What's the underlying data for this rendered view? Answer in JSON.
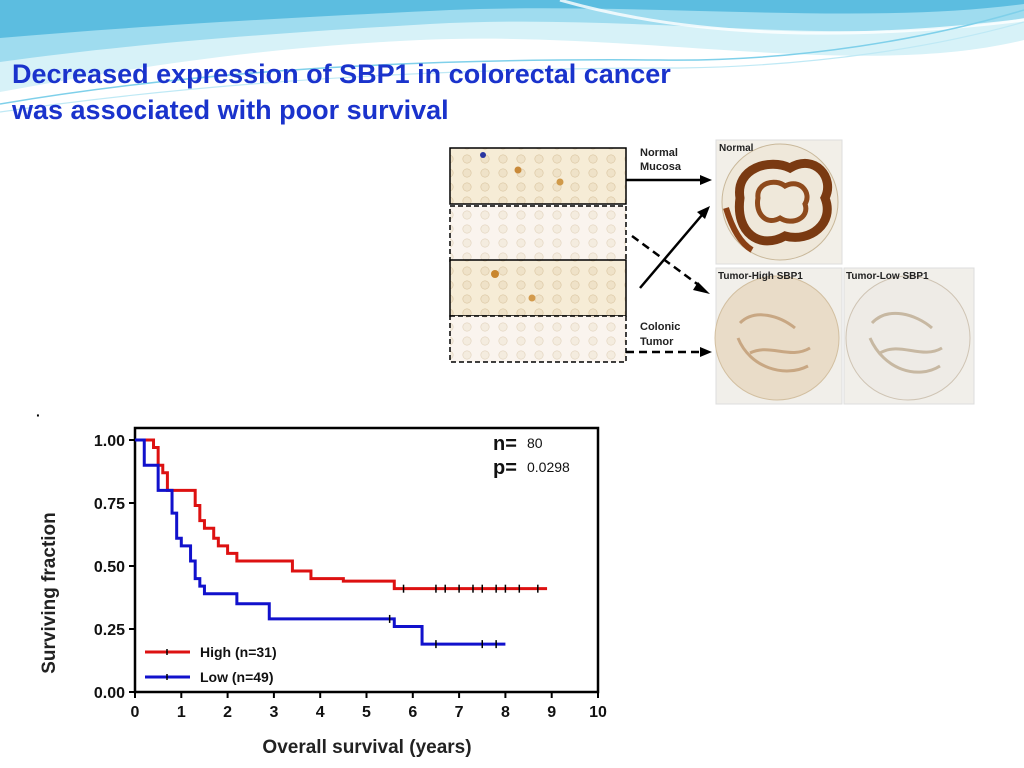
{
  "slide": {
    "title_line1": "Decreased expression of SBP1 in colorectal cancer",
    "title_line2": "was associated with poor survival"
  },
  "diagram": {
    "normal_mucosa_label": [
      "Normal",
      "Mucosa"
    ],
    "colonic_tumor_label": [
      "Colonic",
      "Tumor"
    ],
    "image_normal_label": "Normal",
    "image_tumor_high_label": "Tumor-High SBP1",
    "image_tumor_low_label": "Tumor-Low SBP1"
  },
  "chart_data": {
    "type": "line",
    "subtype": "kaplan-meier",
    "xlabel": "Overall survival (years)",
    "ylabel": "Surviving fraction",
    "xlim": [
      0,
      10
    ],
    "ylim": [
      0,
      1
    ],
    "xticks": [
      "0",
      "1",
      "2",
      "3",
      "4",
      "5",
      "6",
      "7",
      "8",
      "9",
      "10"
    ],
    "yticks": [
      "0.00",
      "0.25",
      "0.50",
      "0.75",
      "1.00"
    ],
    "annotations": {
      "n_label": "n=",
      "n_value": "80",
      "p_label": "p=",
      "p_value": "0.0298"
    },
    "legend_position": "bottom-left",
    "series": [
      {
        "name": "High (n=31)",
        "color": "#dd1111",
        "steps": [
          [
            0,
            1.0
          ],
          [
            0.4,
            0.97
          ],
          [
            0.5,
            0.9
          ],
          [
            0.6,
            0.87
          ],
          [
            0.7,
            0.8
          ],
          [
            1.3,
            0.74
          ],
          [
            1.4,
            0.68
          ],
          [
            1.5,
            0.65
          ],
          [
            1.7,
            0.61
          ],
          [
            1.8,
            0.58
          ],
          [
            2.0,
            0.55
          ],
          [
            2.2,
            0.52
          ],
          [
            2.5,
            0.52
          ],
          [
            3.4,
            0.48
          ],
          [
            3.8,
            0.45
          ],
          [
            4.5,
            0.44
          ],
          [
            5.6,
            0.41
          ],
          [
            8.9,
            0.41
          ]
        ],
        "censor_x": [
          5.8,
          6.5,
          6.7,
          7.0,
          7.3,
          7.5,
          7.8,
          8.0,
          8.3,
          8.7
        ]
      },
      {
        "name": "Low (n=49)",
        "color": "#1111cc",
        "steps": [
          [
            0,
            1.0
          ],
          [
            0.2,
            0.9
          ],
          [
            0.5,
            0.8
          ],
          [
            0.8,
            0.71
          ],
          [
            0.9,
            0.61
          ],
          [
            1.0,
            0.58
          ],
          [
            1.2,
            0.52
          ],
          [
            1.3,
            0.45
          ],
          [
            1.4,
            0.42
          ],
          [
            1.5,
            0.39
          ],
          [
            2.2,
            0.35
          ],
          [
            2.9,
            0.29
          ],
          [
            5.6,
            0.26
          ],
          [
            6.2,
            0.19
          ],
          [
            8.0,
            0.19
          ]
        ],
        "censor_x": [
          5.5,
          6.5,
          7.5,
          7.8
        ]
      }
    ]
  }
}
